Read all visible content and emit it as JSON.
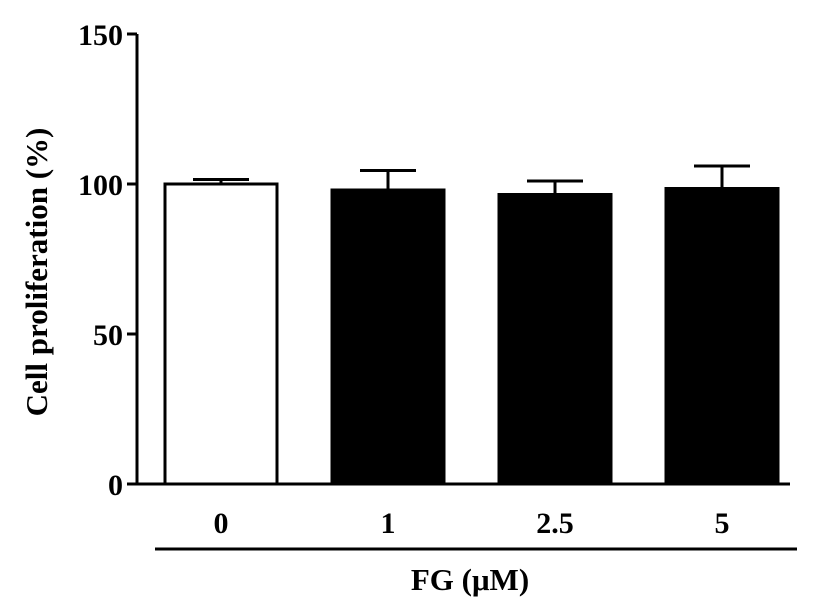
{
  "chart_data": {
    "type": "bar",
    "title": "",
    "categories": [
      "0",
      "1",
      "2.5",
      "5"
    ],
    "series": [
      {
        "values": [
          100,
          98,
          96.5,
          98.5
        ],
        "errors": [
          1.5,
          6.5,
          4.5,
          7.5
        ],
        "fills": [
          "#ffffff",
          "#000000",
          "#000000",
          "#000000"
        ]
      }
    ],
    "xlabel": "FG (μM)",
    "ylabel": "Cell proliferation (%)",
    "ylim": [
      0,
      150
    ],
    "yticks": [
      "0",
      "50",
      "100",
      "150"
    ],
    "grid": false,
    "legend": "none"
  },
  "colors": {
    "bar_control": "#ffffff",
    "bar_treated": "#000000",
    "axis": "#000000"
  }
}
